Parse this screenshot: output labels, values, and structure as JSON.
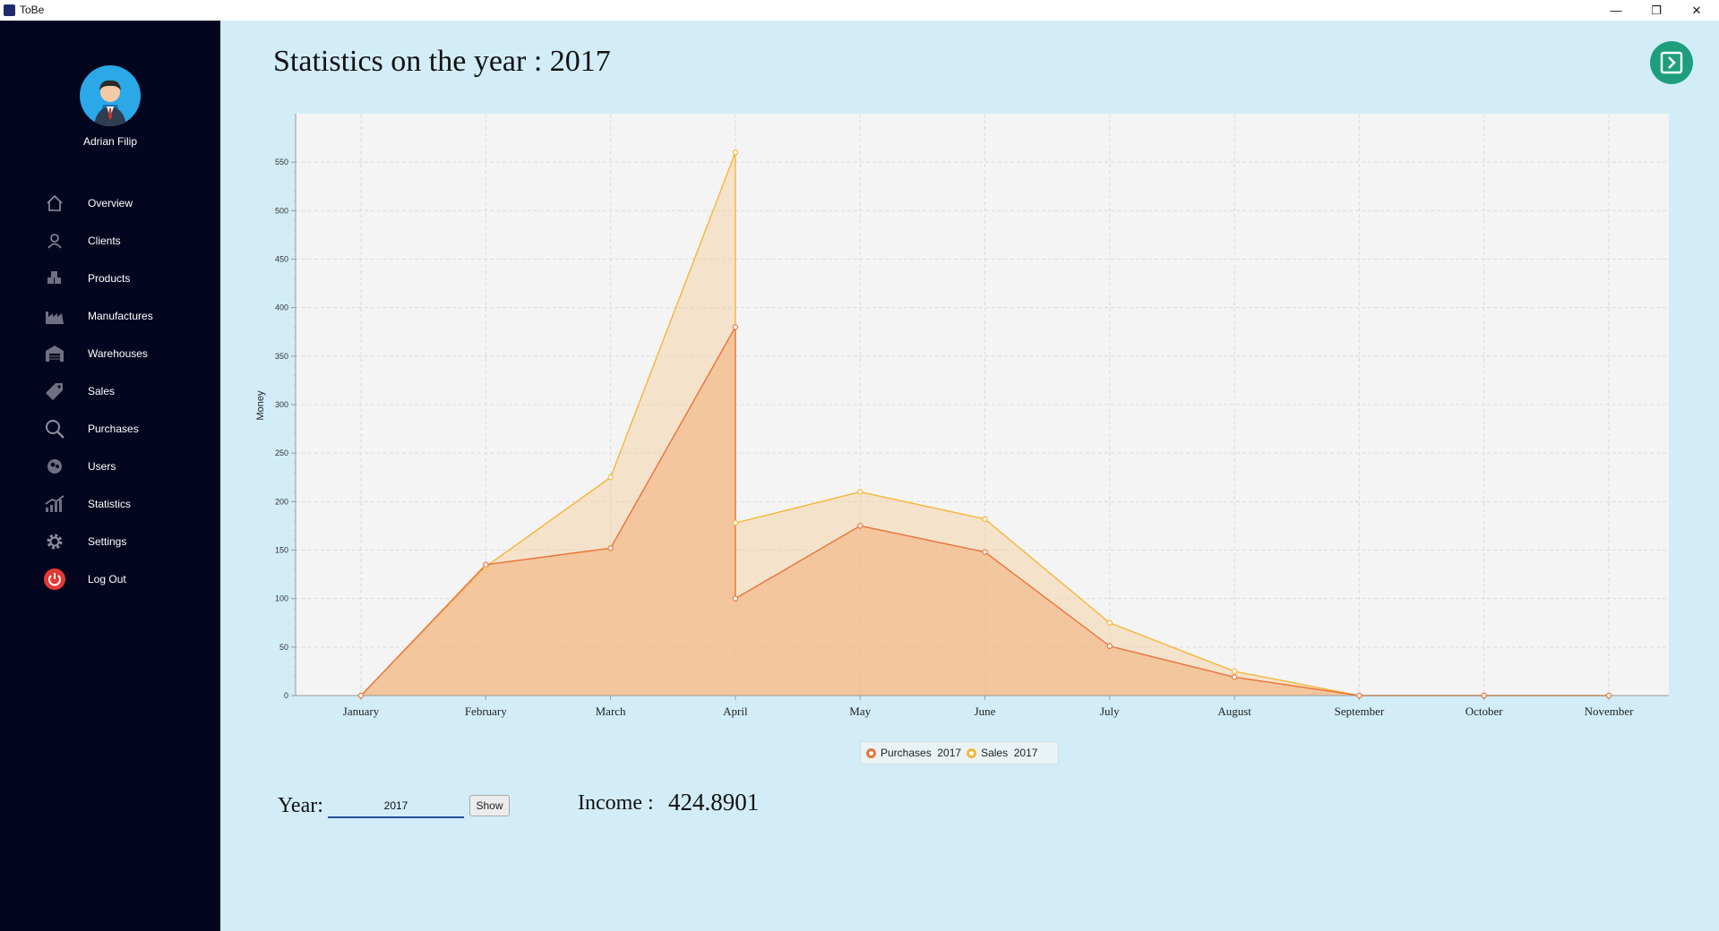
{
  "window": {
    "title": "ToBe",
    "minimize": "—",
    "maximize": "❐",
    "close": "✕"
  },
  "sidebar": {
    "user_name": "Adrian Filip",
    "items": [
      {
        "label": "Overview",
        "icon": "home-icon"
      },
      {
        "label": "Clients",
        "icon": "user-icon"
      },
      {
        "label": "Products",
        "icon": "boxes-icon"
      },
      {
        "label": "Manufactures",
        "icon": "factory-icon"
      },
      {
        "label": "Warehouses",
        "icon": "warehouse-icon"
      },
      {
        "label": "Sales",
        "icon": "tag-icon"
      },
      {
        "label": "Purchases",
        "icon": "search-icon"
      },
      {
        "label": "Users",
        "icon": "users-icon"
      },
      {
        "label": "Statistics",
        "icon": "chart-icon"
      },
      {
        "label": "Settings",
        "icon": "gear-icon"
      },
      {
        "label": "Log Out",
        "icon": "power-icon"
      }
    ]
  },
  "main": {
    "title": "Statistics on the year : 2017",
    "export_icon": "export-icon"
  },
  "controls": {
    "year_label": "Year:",
    "year_value": "2017",
    "show_label": "Show",
    "income_label": "Income :",
    "income_value": "424.8901"
  },
  "chart_data": {
    "type": "area",
    "categories": [
      "January",
      "February",
      "March",
      "April",
      "May",
      "June",
      "July",
      "August",
      "September",
      "October",
      "November"
    ],
    "ylabel": "Money",
    "ylim": [
      0,
      600
    ],
    "yticks": [
      0,
      50,
      100,
      150,
      200,
      250,
      300,
      350,
      400,
      450,
      500,
      550
    ],
    "grid": true,
    "legend_position": "bottom",
    "series": [
      {
        "name": "Purchases  2017",
        "color": "#e8743b",
        "points": [
          [
            0,
            0
          ],
          [
            1,
            135
          ],
          [
            2,
            152
          ],
          [
            3,
            380
          ],
          [
            3,
            100
          ],
          [
            4,
            175
          ],
          [
            5,
            148
          ],
          [
            6,
            51
          ],
          [
            7,
            19
          ],
          [
            8,
            0
          ],
          [
            9,
            0
          ],
          [
            10,
            0
          ]
        ]
      },
      {
        "name": "Sales  2017",
        "color": "#f5b63a",
        "points": [
          [
            0,
            0
          ],
          [
            1,
            133
          ],
          [
            2,
            225
          ],
          [
            3,
            560
          ],
          [
            3,
            178
          ],
          [
            4,
            210
          ],
          [
            5,
            182
          ],
          [
            6,
            75
          ],
          [
            7,
            25
          ],
          [
            8,
            0
          ],
          [
            9,
            0
          ],
          [
            10,
            0
          ]
        ]
      }
    ]
  }
}
